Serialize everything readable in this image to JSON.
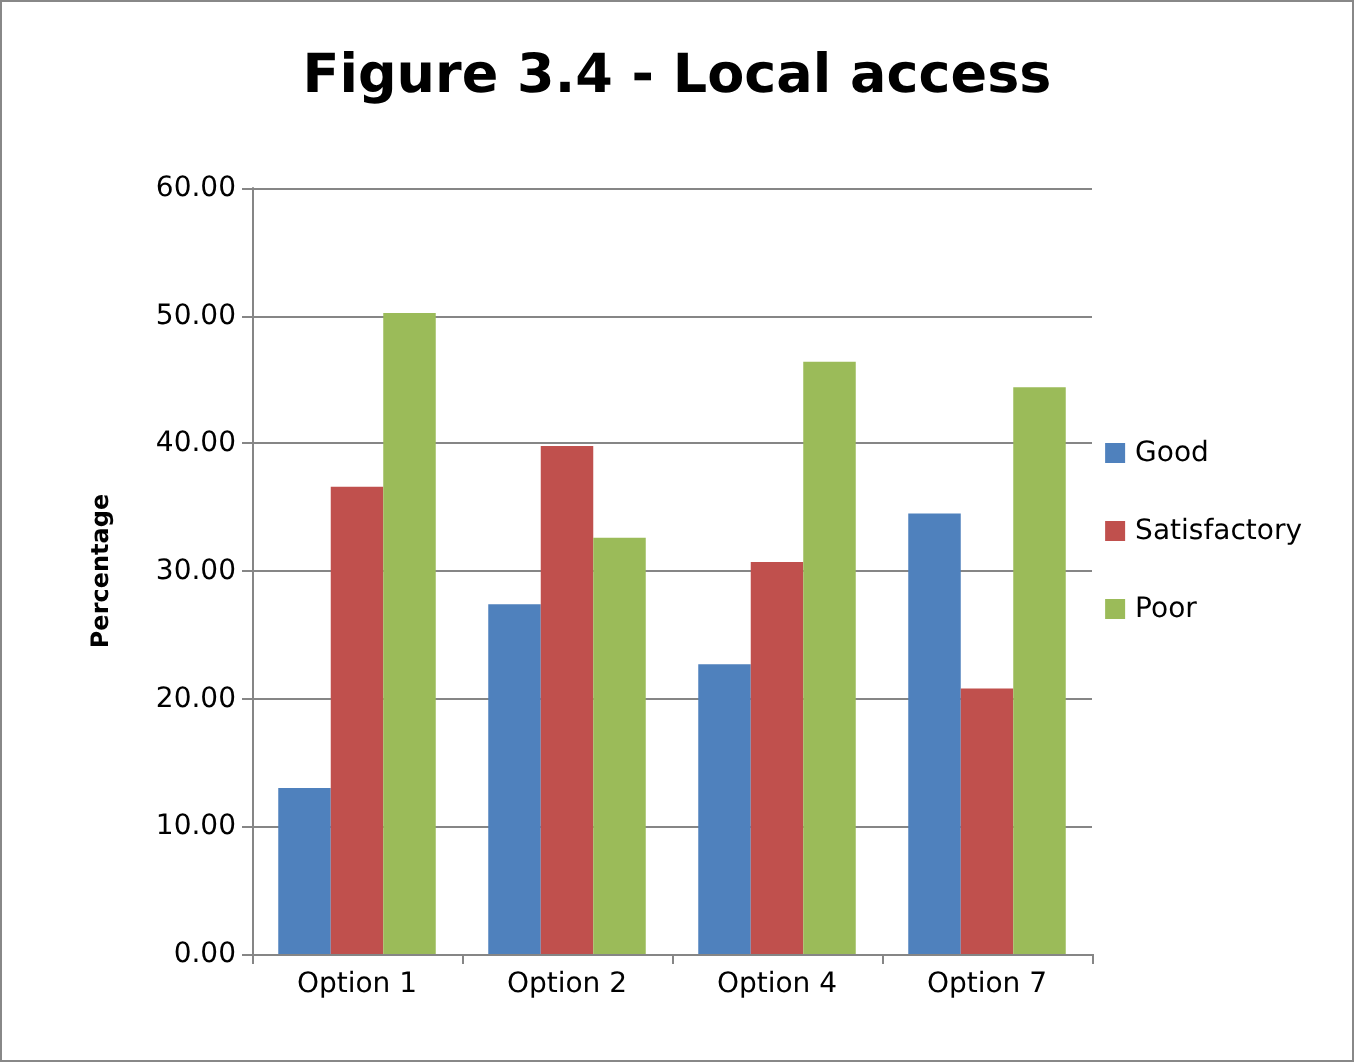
{
  "chart_data": {
    "type": "bar",
    "title": "Figure 3.4 - Local access",
    "ylabel": "Percentage",
    "categories": [
      "Option 1",
      "Option 2",
      "Option 4",
      "Option 7"
    ],
    "series": [
      {
        "name": "Good",
        "color": "#4f81bd",
        "values": [
          13.0,
          27.4,
          22.7,
          34.5
        ]
      },
      {
        "name": "Satisfactory",
        "color": "#c0504d",
        "values": [
          36.6,
          39.8,
          30.7,
          20.8
        ]
      },
      {
        "name": "Poor",
        "color": "#9bbb59",
        "values": [
          50.2,
          32.6,
          46.4,
          44.4
        ]
      }
    ],
    "ylim": [
      0,
      60
    ],
    "yticks": [
      {
        "value": 0,
        "label": "0.00"
      },
      {
        "value": 10,
        "label": "10.00"
      },
      {
        "value": 20,
        "label": "20.00"
      },
      {
        "value": 30,
        "label": "30.00"
      },
      {
        "value": 40,
        "label": "40.00"
      },
      {
        "value": 50,
        "label": "50.00"
      },
      {
        "value": 60,
        "label": "60.00"
      }
    ],
    "grid": "y",
    "legend": "right"
  }
}
